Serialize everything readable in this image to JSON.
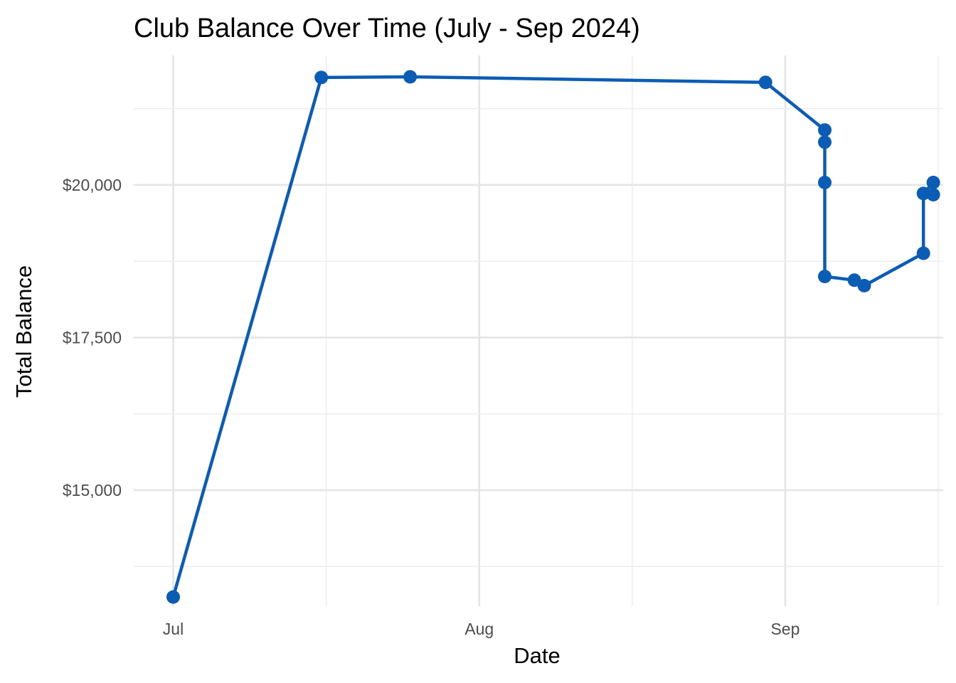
{
  "chart_data": {
    "type": "line",
    "title": "Club Balance Over Time (July - Sep 2024)",
    "xlabel": "Date",
    "ylabel": "Total Balance",
    "x_axis_type": "date",
    "x_ticks": [
      {
        "value": "2024-07-01",
        "label": "Jul"
      },
      {
        "value": "2024-08-01",
        "label": "Aug"
      },
      {
        "value": "2024-09-01",
        "label": "Sep"
      }
    ],
    "y_ticks": [
      {
        "value": 15000,
        "label": "$15,000"
      },
      {
        "value": 17500,
        "label": "$17,500"
      },
      {
        "value": 20000,
        "label": "$20,000"
      }
    ],
    "xlim": [
      "2024-06-27",
      "2024-09-17"
    ],
    "ylim": [
      13100,
      22120
    ],
    "grid": true,
    "line_color": "#0b5cb5",
    "point_color": "#0b5cb5",
    "series": [
      {
        "points": [
          {
            "x": "2024-07-01",
            "y": 13250
          },
          {
            "x": "2024-07-16",
            "y": 21760
          },
          {
            "x": "2024-07-25",
            "y": 21770
          },
          {
            "x": "2024-08-30",
            "y": 21680
          },
          {
            "x": "2024-09-05",
            "y": 20900
          },
          {
            "x": "2024-09-05",
            "y": 20700
          },
          {
            "x": "2024-09-05",
            "y": 20040
          },
          {
            "x": "2024-09-05",
            "y": 18500
          },
          {
            "x": "2024-09-08",
            "y": 18440
          },
          {
            "x": "2024-09-09",
            "y": 18350
          },
          {
            "x": "2024-09-15",
            "y": 18880
          },
          {
            "x": "2024-09-15",
            "y": 19860
          },
          {
            "x": "2024-09-16",
            "y": 20040
          },
          {
            "x": "2024-09-16",
            "y": 19840
          }
        ]
      }
    ]
  }
}
